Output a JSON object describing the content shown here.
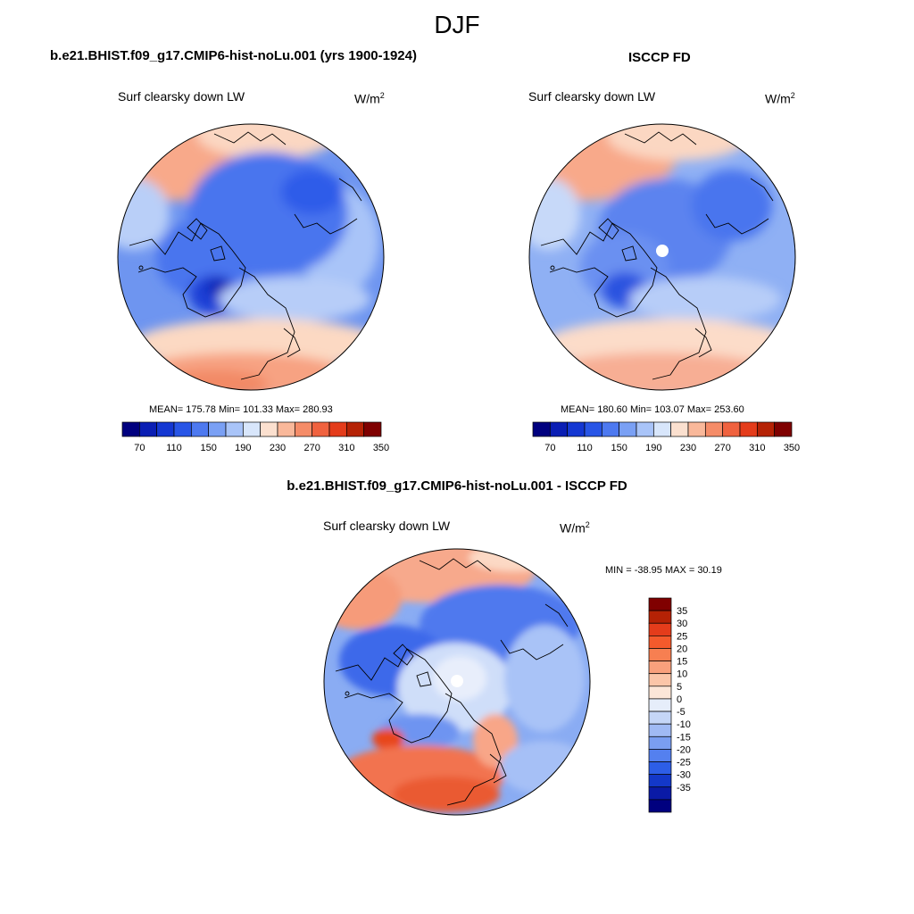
{
  "figure": {
    "season": "DJF"
  },
  "variable": "Surf clearsky down LW",
  "units": {
    "base": "W/m",
    "exponent": "2"
  },
  "panels": [
    {
      "id": "model",
      "title": "b.e21.BHIST.f09_g17.CMIP6-hist-noLu.001 (yrs 1900-1924)",
      "stats": "MEAN= 175.78  Min= 101.33  Max= 280.93",
      "mean": 175.78,
      "min": 101.33,
      "max": 280.93
    },
    {
      "id": "obs",
      "title": "ISCCP FD",
      "stats": "MEAN= 180.60  Min= 103.07  Max= 253.60",
      "mean": 180.6,
      "min": 103.07,
      "max": 253.6
    },
    {
      "id": "diff",
      "title": "b.e21.BHIST.f09_g17.CMIP6-hist-noLu.001 - ISCCP FD",
      "stats": "MIN = -38.95 MAX =  30.19",
      "min": -38.95,
      "max": 30.19
    }
  ],
  "abs_colorbar": {
    "tick_labels": [
      "70",
      "110",
      "150",
      "190",
      "230",
      "270",
      "310",
      "350"
    ],
    "colors": [
      "#00007f",
      "#0a1eb4",
      "#1437d2",
      "#2855e6",
      "#4d79f0",
      "#7aa0f4",
      "#a9c4f8",
      "#d8e6fb",
      "#fbe0cf",
      "#f9b89a",
      "#f58c68",
      "#f0623f",
      "#e43c1b",
      "#b52205",
      "#7f0000"
    ]
  },
  "diff_colorbar": {
    "labels": [
      "35",
      "30",
      "25",
      "20",
      "15",
      "10",
      "5",
      "0",
      "-5",
      "-10",
      "-15",
      "-20",
      "-25",
      "-30",
      "-35"
    ],
    "colors": [
      "#800000",
      "#b52205",
      "#e43c1b",
      "#f45a2c",
      "#f77f51",
      "#f9a07c",
      "#fbc5a8",
      "#fce6d8",
      "#e6edfa",
      "#c5d6f7",
      "#a0baf4",
      "#7a9ef1",
      "#5480ef",
      "#2d5ee7",
      "#1338c9",
      "#0a1aa6",
      "#00007f"
    ]
  },
  "colors": {
    "land_outline": "#000000",
    "missing": "#ffffff"
  }
}
